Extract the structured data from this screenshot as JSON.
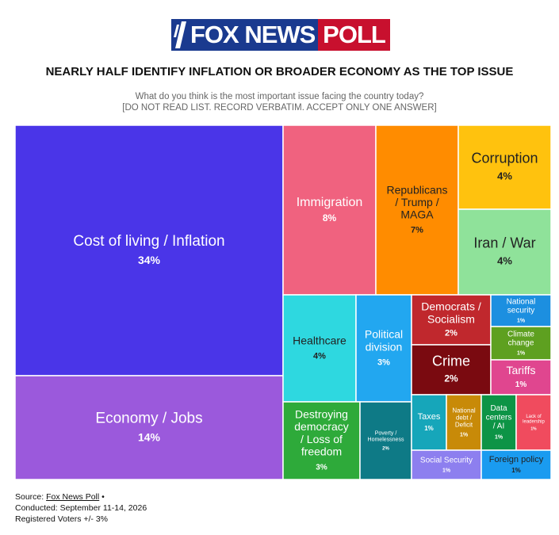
{
  "logo": {
    "brand": "FOX NEWS",
    "poll": "POLL"
  },
  "title": "NEARLY HALF IDENTIFY INFLATION OR BROADER ECONOMY AS THE TOP ISSUE",
  "question": "What do you think is the most important issue facing the country today?",
  "instructions": "[DO NOT READ LIST. RECORD VERBATIM. ACCEPT ONLY ONE ANSWER]",
  "footer": {
    "source_label": "Source:",
    "source_link": "Fox News Poll",
    "source_bullet": "•",
    "conducted": "Conducted: September 11-14, 2026",
    "registered": "Registered Voters +/- 3%"
  },
  "chart_data": {
    "type": "treemap",
    "unit": "%",
    "items": [
      {
        "label": "Cost of living / Inflation",
        "value": 34,
        "display": "34%",
        "color": "#4a35e8"
      },
      {
        "label": "Economy / Jobs",
        "value": 14,
        "display": "14%",
        "color": "#9b59dc"
      },
      {
        "label": "Immigration",
        "value": 8,
        "display": "8%",
        "color": "#f0627f"
      },
      {
        "label": "Republicans / Trump / MAGA",
        "value": 7,
        "display": "7%",
        "color": "#ff8c00"
      },
      {
        "label": "Corruption",
        "value": 4,
        "display": "4%",
        "color": "#ffc20e"
      },
      {
        "label": "Iran / War",
        "value": 4,
        "display": "4%",
        "color": "#8fe29a"
      },
      {
        "label": "Healthcare",
        "value": 4,
        "display": "4%",
        "color": "#2ed8e0"
      },
      {
        "label": "Political division",
        "value": 3,
        "display": "3%",
        "color": "#22a7f0"
      },
      {
        "label": "Democrats / Socialism",
        "value": 2,
        "display": "2%",
        "color": "#c0282d"
      },
      {
        "label": "Crime",
        "value": 2,
        "display": "2%",
        "color": "#7a0a10"
      },
      {
        "label": "Destroying democracy / Loss of freedom",
        "value": 3,
        "display": "3%",
        "color": "#2eaa3a"
      },
      {
        "label": "Poverty / Homelessness",
        "value": 2,
        "display": "2%",
        "color": "#0e7a86"
      },
      {
        "label": "National security",
        "value": 1,
        "display": "1%",
        "color": "#1c8fe0"
      },
      {
        "label": "Climate change",
        "value": 1,
        "display": "1%",
        "color": "#5ea020"
      },
      {
        "label": "Tariffs",
        "value": 1,
        "display": "1%",
        "color": "#e0468f"
      },
      {
        "label": "Taxes",
        "value": 1,
        "display": "1%",
        "color": "#16a6ba"
      },
      {
        "label": "National debt / Deficit",
        "value": 1,
        "display": "1%",
        "color": "#c88a08"
      },
      {
        "label": "Data centers / AI",
        "value": 1,
        "display": "1%",
        "color": "#0d9446"
      },
      {
        "label": "Lack of leadership",
        "value": 1,
        "display": "1%",
        "color": "#f04b5e"
      },
      {
        "label": "Social Security",
        "value": 1,
        "display": "1%",
        "color": "#8d7fef"
      },
      {
        "label": "Foreign policy",
        "value": 1,
        "display": "1%",
        "color": "#1a9bf0"
      }
    ]
  }
}
